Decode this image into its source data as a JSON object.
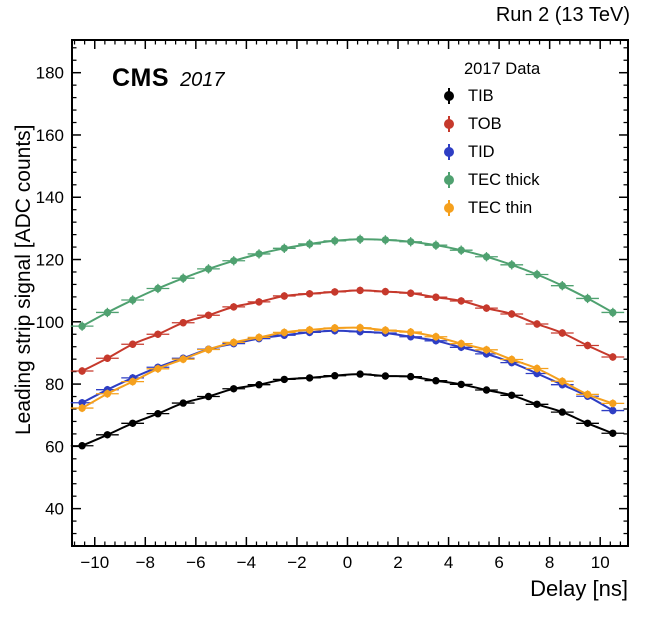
{
  "annotations": {
    "top_right": "Run 2 (13 TeV)",
    "experiment": "CMS",
    "era": "2017"
  },
  "chart_data": {
    "type": "scatter",
    "title": "Run 2 (13 TeV)",
    "xlabel": "Delay [ns]",
    "ylabel": "Leading strip signal [ADC counts]",
    "legend_title": "2017 Data",
    "legend_position": "top-right-inside",
    "grid": false,
    "xlim": [
      -10.9,
      11.1
    ],
    "ylim": [
      28,
      190.5
    ],
    "x_ticks": [
      -10,
      -8,
      -6,
      -4,
      -2,
      0,
      2,
      4,
      6,
      8,
      10
    ],
    "y_ticks": [
      40,
      60,
      80,
      100,
      120,
      140,
      160,
      180
    ],
    "series": [
      {
        "name": "TIB",
        "color": "#000000",
        "xerr": 0.45,
        "yerr": 1.1,
        "points": [
          [
            -10.5,
            60.2
          ],
          [
            -9.5,
            63.7
          ],
          [
            -8.5,
            67.4
          ],
          [
            -7.5,
            70.5
          ],
          [
            -6.5,
            73.9
          ],
          [
            -5.5,
            76.0
          ],
          [
            -4.5,
            78.5
          ],
          [
            -3.5,
            79.8
          ],
          [
            -2.5,
            81.5
          ],
          [
            -1.5,
            82.0
          ],
          [
            -0.5,
            82.7
          ],
          [
            0.5,
            83.2
          ],
          [
            1.5,
            82.6
          ],
          [
            2.5,
            82.4
          ],
          [
            3.5,
            81.1
          ],
          [
            4.5,
            79.9
          ],
          [
            5.5,
            78.1
          ],
          [
            6.5,
            76.4
          ],
          [
            7.5,
            73.5
          ],
          [
            8.5,
            71.0
          ],
          [
            9.5,
            67.4
          ],
          [
            10.5,
            64.2
          ]
        ]
      },
      {
        "name": "TOB",
        "color": "#c6392c",
        "xerr": 0.45,
        "yerr": 1.2,
        "points": [
          [
            -10.5,
            84.2
          ],
          [
            -9.5,
            88.3
          ],
          [
            -8.5,
            92.8
          ],
          [
            -7.5,
            96.0
          ],
          [
            -6.5,
            99.7
          ],
          [
            -5.5,
            102.1
          ],
          [
            -4.5,
            104.8
          ],
          [
            -3.5,
            106.4
          ],
          [
            -2.5,
            108.3
          ],
          [
            -1.5,
            109.0
          ],
          [
            -0.5,
            109.6
          ],
          [
            0.5,
            110.1
          ],
          [
            1.5,
            109.7
          ],
          [
            2.5,
            109.2
          ],
          [
            3.5,
            107.9
          ],
          [
            4.5,
            106.7
          ],
          [
            5.5,
            104.4
          ],
          [
            6.5,
            102.5
          ],
          [
            7.5,
            99.3
          ],
          [
            8.5,
            96.4
          ],
          [
            9.5,
            92.4
          ],
          [
            10.5,
            88.7
          ]
        ]
      },
      {
        "name": "TID",
        "color": "#2e3ec4",
        "xerr": 0.45,
        "yerr": 1.2,
        "points": [
          [
            -10.5,
            74.0
          ],
          [
            -9.5,
            78.2
          ],
          [
            -8.5,
            82.0
          ],
          [
            -7.5,
            85.4
          ],
          [
            -6.5,
            88.3
          ],
          [
            -5.5,
            91.2
          ],
          [
            -4.5,
            93.0
          ],
          [
            -3.5,
            94.6
          ],
          [
            -2.5,
            95.7
          ],
          [
            -1.5,
            96.6
          ],
          [
            -0.5,
            97.1
          ],
          [
            0.5,
            96.8
          ],
          [
            1.5,
            96.4
          ],
          [
            2.5,
            95.2
          ],
          [
            3.5,
            93.9
          ],
          [
            4.5,
            91.8
          ],
          [
            5.5,
            89.7
          ],
          [
            6.5,
            86.9
          ],
          [
            7.5,
            83.4
          ],
          [
            8.5,
            79.8
          ],
          [
            9.5,
            76.1
          ],
          [
            10.5,
            71.5
          ]
        ]
      },
      {
        "name": "TEC thick",
        "color": "#4fa170",
        "xerr": 0.45,
        "yerr": 1.5,
        "points": [
          [
            -10.5,
            98.6
          ],
          [
            -9.5,
            103.0
          ],
          [
            -8.5,
            107.0
          ],
          [
            -7.5,
            110.7
          ],
          [
            -6.5,
            114.0
          ],
          [
            -5.5,
            117.0
          ],
          [
            -4.5,
            119.6
          ],
          [
            -3.5,
            121.8
          ],
          [
            -2.5,
            123.6
          ],
          [
            -1.5,
            125.0
          ],
          [
            -0.5,
            126.0
          ],
          [
            0.5,
            126.5
          ],
          [
            1.5,
            126.3
          ],
          [
            2.5,
            125.7
          ],
          [
            3.5,
            124.6
          ],
          [
            4.5,
            123.0
          ],
          [
            5.5,
            120.9
          ],
          [
            6.5,
            118.3
          ],
          [
            7.5,
            115.2
          ],
          [
            8.5,
            111.6
          ],
          [
            9.5,
            107.5
          ],
          [
            10.5,
            103.0
          ]
        ]
      },
      {
        "name": "TEC thin",
        "color": "#f5a01d",
        "xerr": 0.45,
        "yerr": 1.3,
        "points": [
          [
            -10.5,
            72.3
          ],
          [
            -9.5,
            76.9
          ],
          [
            -8.5,
            80.8
          ],
          [
            -7.5,
            84.9
          ],
          [
            -6.5,
            88.0
          ],
          [
            -5.5,
            91.1
          ],
          [
            -4.5,
            93.4
          ],
          [
            -3.5,
            95.0
          ],
          [
            -2.5,
            96.6
          ],
          [
            -1.5,
            97.4
          ],
          [
            -0.5,
            98.0
          ],
          [
            0.5,
            98.1
          ],
          [
            1.5,
            97.3
          ],
          [
            2.5,
            96.7
          ],
          [
            3.5,
            95.2
          ],
          [
            4.5,
            93.0
          ],
          [
            5.5,
            91.0
          ],
          [
            6.5,
            87.9
          ],
          [
            7.5,
            85.0
          ],
          [
            8.5,
            80.9
          ],
          [
            9.5,
            76.7
          ],
          [
            10.5,
            73.8
          ]
        ]
      }
    ]
  }
}
